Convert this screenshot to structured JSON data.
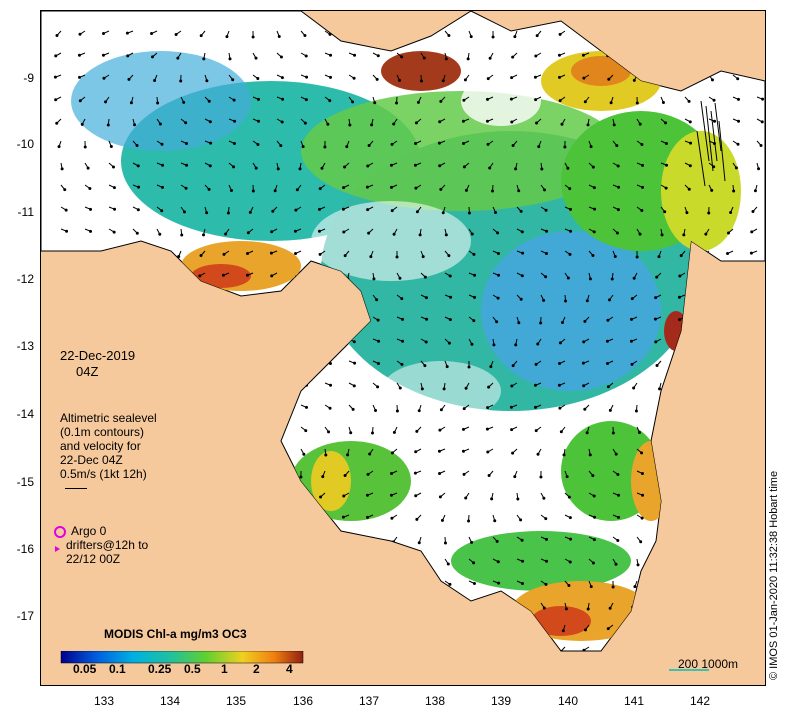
{
  "map": {
    "date": "22-Dec-2019",
    "time": "04Z",
    "legend_lines": [
      "Altimetric sealevel",
      "(0.1m contours)",
      "and velocity for",
      "22-Dec 04Z",
      "0.5m/s (1kt 12h)"
    ],
    "argo_label": "Argo 0",
    "drifter_lines": [
      "drifters@12h to",
      "22/12 00Z"
    ],
    "colorbar_title": "MODIS Chl-a mg/m3 OC3",
    "colorbar_ticks": [
      "0.05",
      "0.1",
      "0.25",
      "0.5",
      "1",
      "2",
      "4"
    ],
    "scale_label": "200 1000m",
    "side_credit": "© IMOS 01-Jan-2020 11:32:38 Hobart time",
    "lat_ticks": [
      "-9",
      "-10",
      "-11",
      "-12",
      "-13",
      "-14",
      "-15",
      "-16",
      "-17"
    ],
    "lon_ticks": [
      "133",
      "134",
      "135",
      "136",
      "137",
      "138",
      "139",
      "140",
      "141",
      "142"
    ],
    "colors": {
      "land": "#f6c99d",
      "ocean_nodata": "#ffffff",
      "argo": "#e000e0",
      "scale_bar": "#40c0b0"
    }
  }
}
